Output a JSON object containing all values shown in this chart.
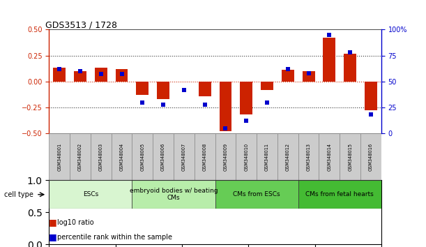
{
  "title": "GDS3513 / 1728",
  "samples": [
    "GSM348001",
    "GSM348002",
    "GSM348003",
    "GSM348004",
    "GSM348005",
    "GSM348006",
    "GSM348007",
    "GSM348008",
    "GSM348009",
    "GSM348010",
    "GSM348011",
    "GSM348012",
    "GSM348013",
    "GSM348014",
    "GSM348015",
    "GSM348016"
  ],
  "log10_ratio": [
    0.13,
    0.1,
    0.13,
    0.12,
    -0.13,
    -0.17,
    0.0,
    -0.14,
    -0.48,
    -0.32,
    -0.08,
    0.11,
    0.1,
    0.42,
    0.27,
    -0.28
  ],
  "percentile_rank": [
    62,
    60,
    57,
    57,
    30,
    28,
    42,
    28,
    5,
    12,
    30,
    62,
    58,
    95,
    78,
    18
  ],
  "cell_type_groups": [
    {
      "label": "ESCs",
      "start": 0,
      "end": 3,
      "color": "#d8f5d0"
    },
    {
      "label": "embryoid bodies w/ beating\nCMs",
      "start": 4,
      "end": 7,
      "color": "#b8edaa"
    },
    {
      "label": "CMs from ESCs",
      "start": 8,
      "end": 11,
      "color": "#66cc55"
    },
    {
      "label": "CMs from fetal hearts",
      "start": 12,
      "end": 15,
      "color": "#44bb33"
    }
  ],
  "bar_color": "#cc2200",
  "dot_color": "#0000cc",
  "ylim_left": [
    -0.5,
    0.5
  ],
  "ylim_right": [
    0,
    100
  ],
  "yticks_left": [
    -0.5,
    -0.25,
    0.0,
    0.25,
    0.5
  ],
  "yticks_right": [
    0,
    25,
    50,
    75,
    100
  ],
  "hline_color_zero": "#cc2200",
  "hline_color_other": "#444444",
  "background_color": "#ffffff",
  "plot_bg": "#ffffff",
  "sample_box_color": "#cccccc",
  "sample_box_edge": "#888888"
}
